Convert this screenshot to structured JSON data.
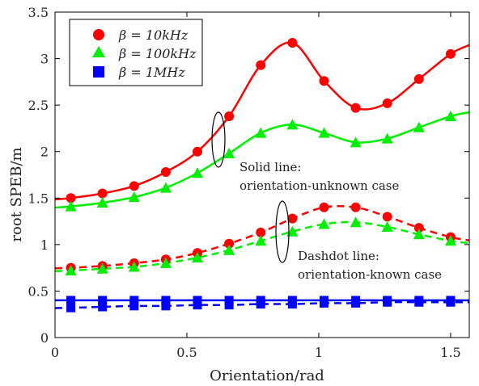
{
  "chart_data": {
    "type": "line",
    "xlabel": "Orientation/rad",
    "ylabel": "root SPEB/m",
    "xlim": [
      0,
      1.5708
    ],
    "ylim": [
      0,
      3.5
    ],
    "xticks": [
      0,
      0.5,
      1,
      1.5
    ],
    "xtick_labels": [
      "0",
      "0.5",
      "1",
      "1.5"
    ],
    "yticks": [
      0,
      0.5,
      1,
      1.5,
      2,
      2.5,
      3,
      3.5
    ],
    "ytick_labels": [
      "0",
      "0.5",
      "1",
      "1.5",
      "2",
      "2.5",
      "3",
      "3.5"
    ],
    "grid": false,
    "legend_position": "top-left",
    "legend": [
      {
        "label": "β = 10kHz",
        "color": "#ff0000",
        "marker": "circle"
      },
      {
        "label": "β = 100kHz",
        "color": "#00ee00",
        "marker": "triangle"
      },
      {
        "label": "β = 1MHz",
        "color": "#0000ff",
        "marker": "square"
      }
    ],
    "x": [
      0.06,
      0.18,
      0.3,
      0.42,
      0.54,
      0.66,
      0.78,
      0.9,
      1.02,
      1.14,
      1.26,
      1.38,
      1.5
    ],
    "series": [
      {
        "group": 0,
        "style": "solid",
        "color": "#ff0000",
        "marker": "circle",
        "values": [
          1.5,
          1.55,
          1.63,
          1.78,
          2.0,
          2.38,
          2.93,
          3.17,
          2.76,
          2.47,
          2.52,
          2.78,
          3.05
        ]
      },
      {
        "group": 1,
        "style": "solid",
        "color": "#00ee00",
        "marker": "triangle",
        "values": [
          1.41,
          1.45,
          1.51,
          1.61,
          1.77,
          1.98,
          2.2,
          2.29,
          2.2,
          2.1,
          2.14,
          2.26,
          2.38
        ]
      },
      {
        "group": 2,
        "style": "solid",
        "color": "#0000ff",
        "marker": "square",
        "values": [
          0.4,
          0.4,
          0.4,
          0.4,
          0.4,
          0.4,
          0.4,
          0.4,
          0.4,
          0.4,
          0.4,
          0.4,
          0.4
        ]
      },
      {
        "group": 0,
        "style": "dashed",
        "color": "#ff0000",
        "marker": "circle",
        "values": [
          0.75,
          0.77,
          0.8,
          0.84,
          0.91,
          1.01,
          1.13,
          1.28,
          1.4,
          1.4,
          1.3,
          1.18,
          1.08
        ]
      },
      {
        "group": 1,
        "style": "dashed",
        "color": "#00ee00",
        "marker": "triangle",
        "values": [
          0.72,
          0.74,
          0.76,
          0.8,
          0.86,
          0.94,
          1.04,
          1.14,
          1.22,
          1.24,
          1.19,
          1.11,
          1.04
        ]
      },
      {
        "group": 2,
        "style": "dashed",
        "color": "#0000ff",
        "marker": "square",
        "values": [
          0.32,
          0.33,
          0.34,
          0.34,
          0.35,
          0.35,
          0.36,
          0.36,
          0.37,
          0.37,
          0.38,
          0.38,
          0.38
        ]
      }
    ],
    "annotations": [
      {
        "lines": [
          "Solid line:",
          "orientation-unknown case"
        ]
      },
      {
        "lines": [
          "Dashdot line:",
          "orientation-known case"
        ]
      }
    ]
  }
}
